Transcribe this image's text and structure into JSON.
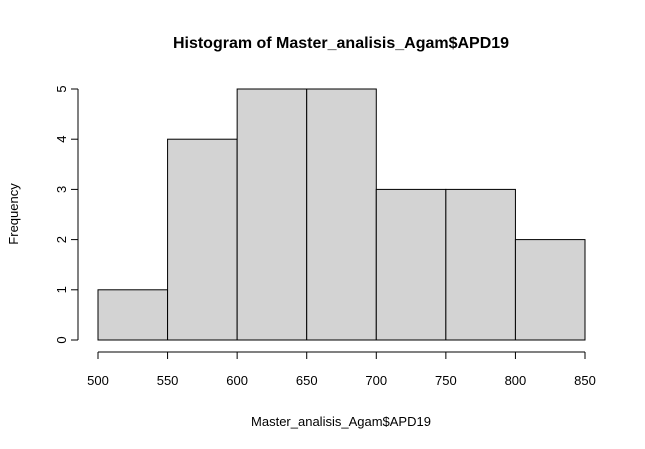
{
  "chart_data": {
    "type": "bar",
    "title": "Histogram of Master_analisis_Agam$APD19",
    "xlabel": "Master_analisis_Agam$APD19",
    "ylabel": "Frequency",
    "bins": [
      {
        "x0": 500,
        "x1": 550,
        "count": 1
      },
      {
        "x0": 550,
        "x1": 600,
        "count": 4
      },
      {
        "x0": 600,
        "x1": 650,
        "count": 5
      },
      {
        "x0": 650,
        "x1": 700,
        "count": 5
      },
      {
        "x0": 700,
        "x1": 750,
        "count": 3
      },
      {
        "x0": 750,
        "x1": 800,
        "count": 3
      },
      {
        "x0": 800,
        "x1": 850,
        "count": 2
      }
    ],
    "xlim": [
      500,
      850
    ],
    "ylim": [
      0,
      5
    ],
    "x_ticks": [
      500,
      550,
      600,
      650,
      700,
      750,
      800,
      850
    ],
    "y_ticks": [
      0,
      1,
      2,
      3,
      4,
      5
    ],
    "grid": false,
    "bar_color": "#d3d3d3",
    "edge_color": "#000000"
  }
}
